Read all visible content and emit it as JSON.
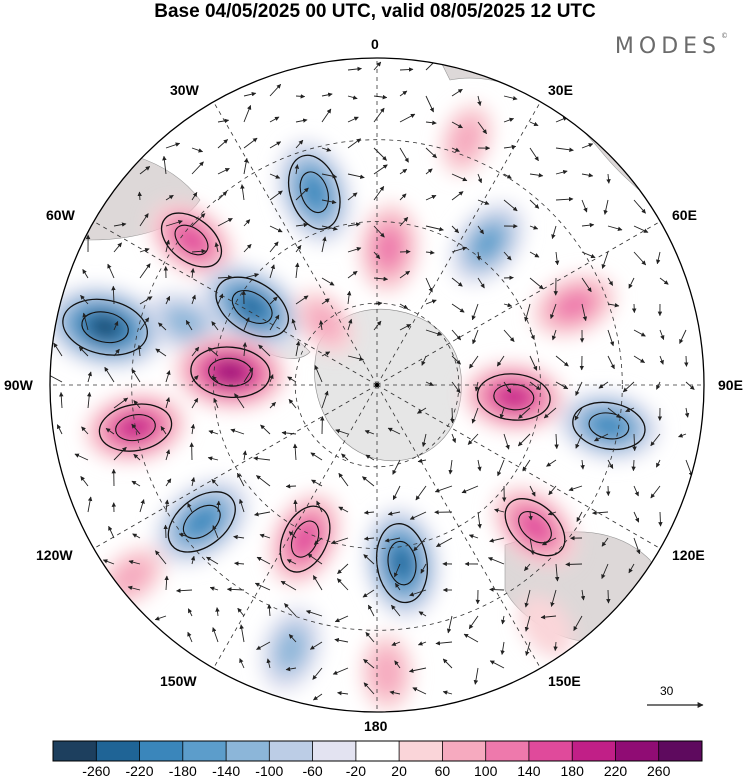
{
  "title": "Base 04/05/2025 00 UTC, valid 08/05/2025 12 UTC",
  "brand": {
    "name": "MODES",
    "mark": "©"
  },
  "longitude_labels": {
    "lon_0": "0",
    "lon_30e": "30E",
    "lon_60e": "60E",
    "lon_90e": "90E",
    "lon_120e": "120E",
    "lon_150e": "150E",
    "lon_180": "180",
    "lon_150w": "150W",
    "lon_120w": "120W",
    "lon_90w": "90W",
    "lon_60w": "60W",
    "lon_30w": "30W"
  },
  "projection": "south polar stereographic",
  "vector_reference": {
    "value": "30"
  },
  "colorbar": {
    "ticks": [
      "-260",
      "-220",
      "-180",
      "-140",
      "-100",
      "-60",
      "-20",
      "20",
      "60",
      "100",
      "140",
      "180",
      "220",
      "260"
    ],
    "colors": [
      "#1d3f5e",
      "#1f6496",
      "#3a86bb",
      "#5c9dcb",
      "#8cb6d9",
      "#bccde6",
      "#e3e3f1",
      "#ffffff",
      "#fad5d9",
      "#f6aabf",
      "#ee79ac",
      "#e04a9b",
      "#c11f87",
      "#900c74",
      "#5e0a5e"
    ]
  },
  "anomaly_cells": [
    {
      "lon": -18,
      "lat_frac": 0.62,
      "value": -200
    },
    {
      "lon": -52,
      "lat_frac": 0.72,
      "value": 150
    },
    {
      "lon": -72,
      "lat_frac": 0.62,
      "value": -120
    },
    {
      "lon": -78,
      "lat_frac": 0.85,
      "value": -260
    },
    {
      "lon": -58,
      "lat_frac": 0.45,
      "value": -220
    },
    {
      "lon": -85,
      "lat_frac": 0.45,
      "value": 220
    },
    {
      "lon": -100,
      "lat_frac": 0.75,
      "value": 180
    },
    {
      "lon": -128,
      "lat_frac": 0.68,
      "value": -200
    },
    {
      "lon": -155,
      "lat_frac": 0.52,
      "value": 160
    },
    {
      "lon": -162,
      "lat_frac": 0.85,
      "value": -120
    },
    {
      "lon": -128,
      "lat_frac": 0.95,
      "value": 60
    },
    {
      "lon": 172,
      "lat_frac": 0.55,
      "value": -220
    },
    {
      "lon": 178,
      "lat_frac": 0.88,
      "value": 80
    },
    {
      "lon": 132,
      "lat_frac": 0.65,
      "value": 160
    },
    {
      "lon": 95,
      "lat_frac": 0.42,
      "value": 180
    },
    {
      "lon": 100,
      "lat_frac": 0.72,
      "value": -180
    },
    {
      "lon": 68,
      "lat_frac": 0.65,
      "value": 120
    },
    {
      "lon": 38,
      "lat_frac": 0.55,
      "value": -140
    },
    {
      "lon": 5,
      "lat_frac": 0.42,
      "value": 130
    },
    {
      "lon": 20,
      "lat_frac": 0.8,
      "value": 60
    },
    {
      "lon": -40,
      "lat_frac": 0.25,
      "value": 60
    },
    {
      "lon": 145,
      "lat_frac": 0.9,
      "value": 40
    }
  ]
}
